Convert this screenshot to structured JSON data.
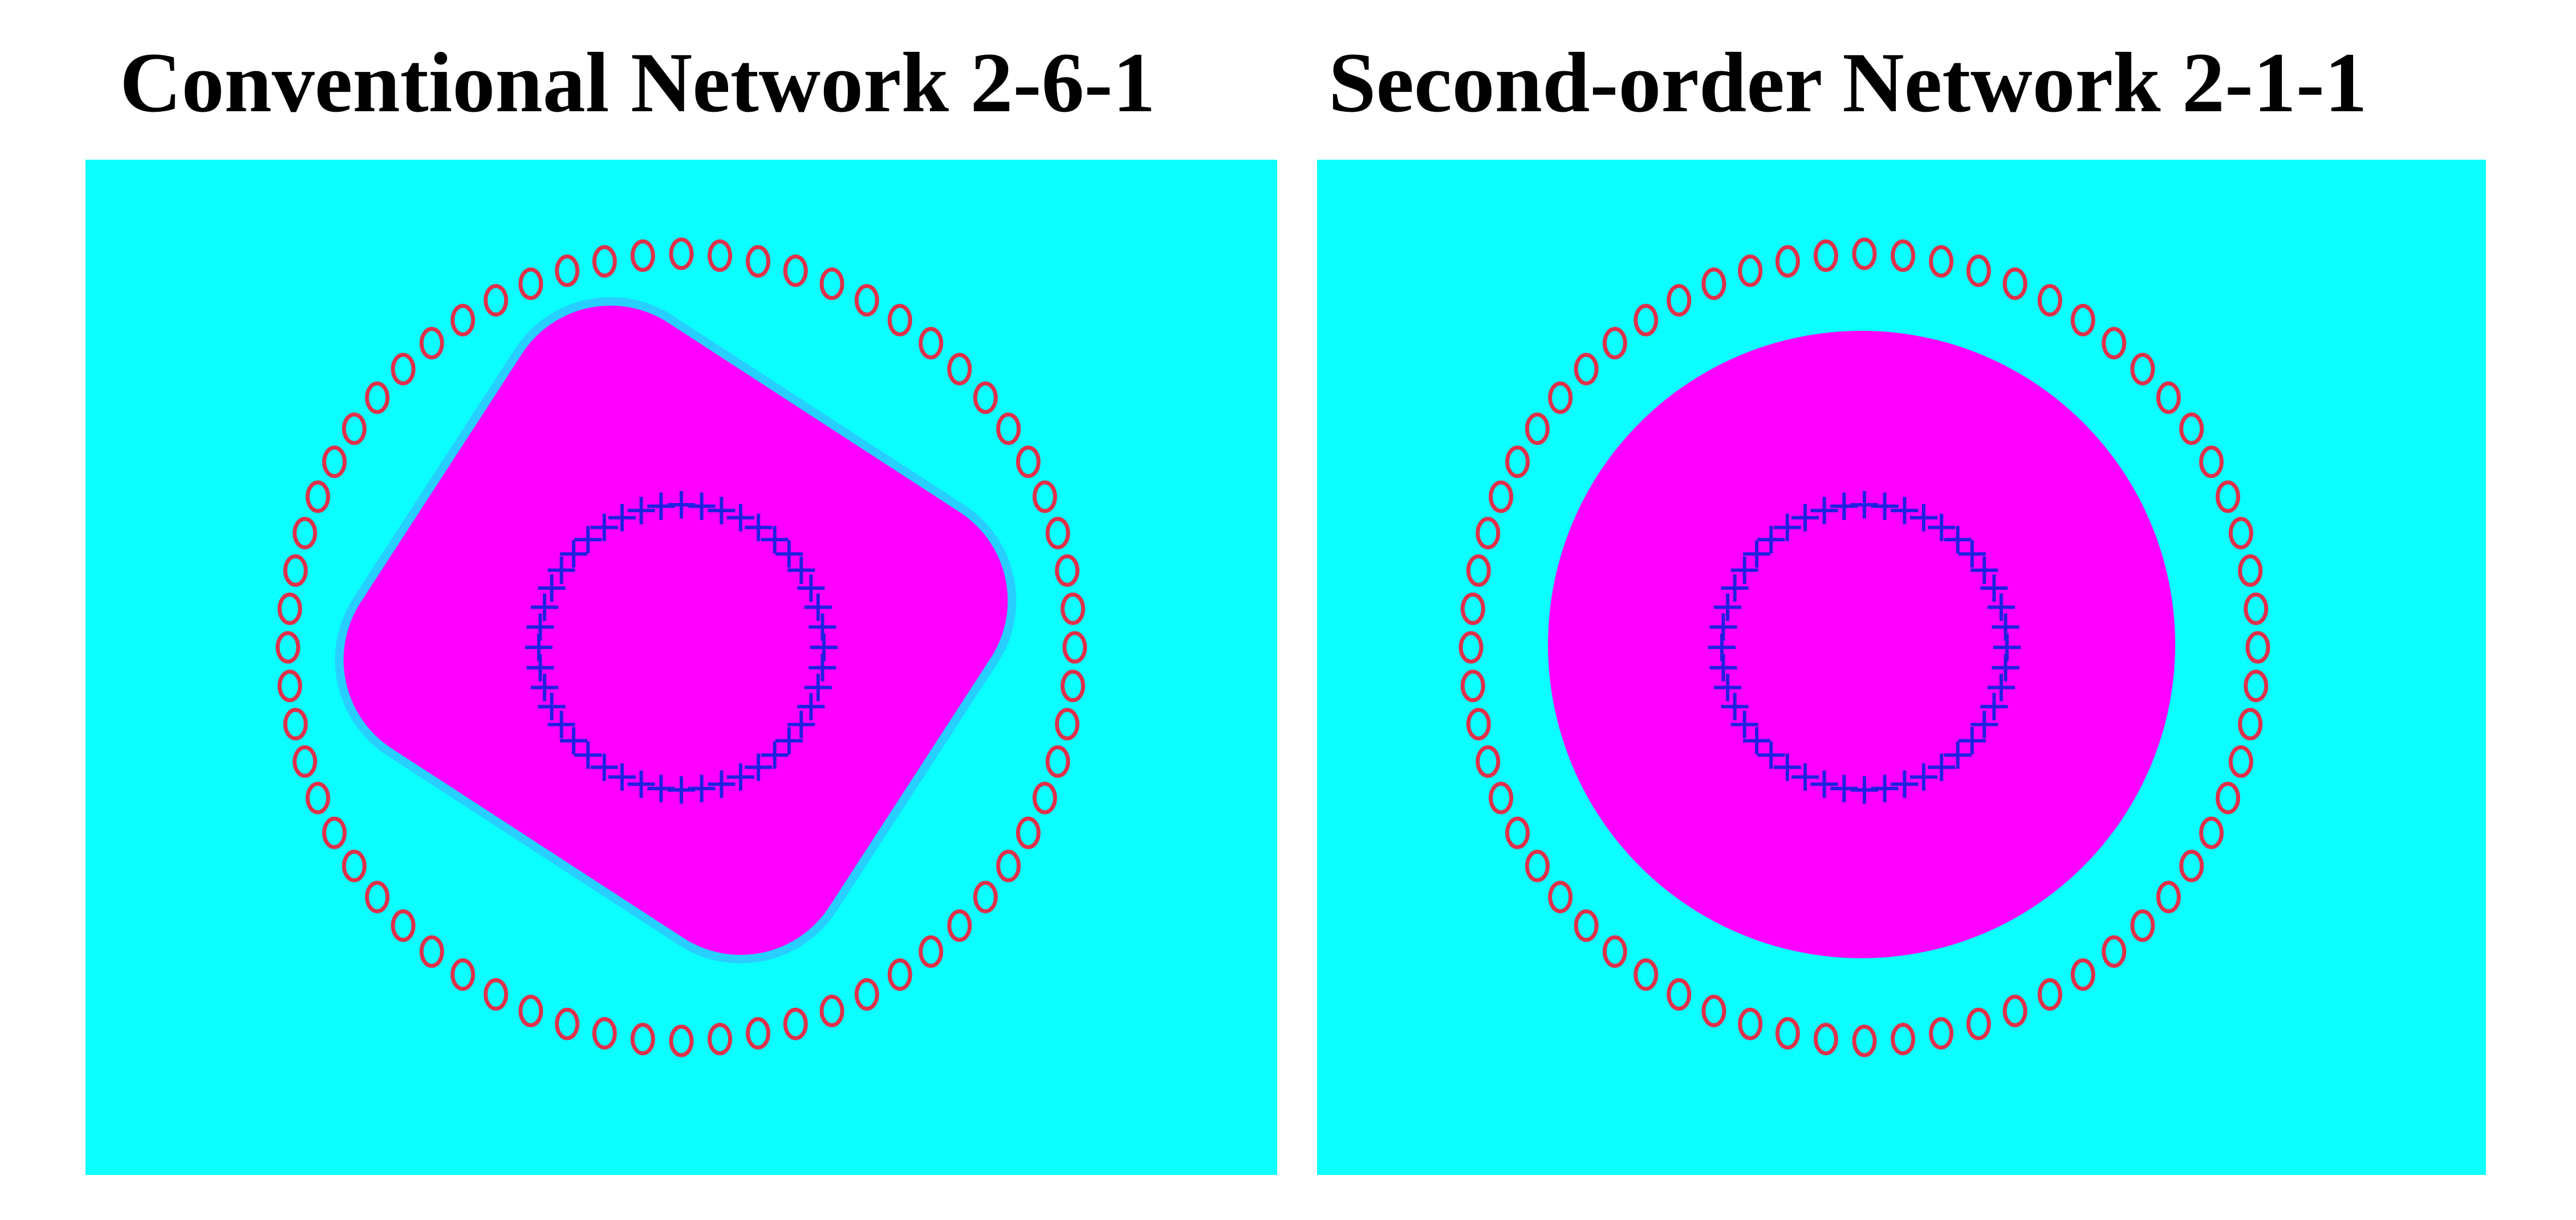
{
  "panels": [
    {
      "id": "left",
      "title": "Conventional Network 2-6-1"
    },
    {
      "id": "right",
      "title": "Second-order Network 2-1-1"
    }
  ],
  "colors": {
    "background": "#0bffff",
    "decision_region": "#ff00ff",
    "region_halo": "#40a8ff",
    "outer_class_marker": "#e0304a",
    "inner_class_marker": "#2020e0"
  },
  "markers": {
    "outer_class_symbol": "o",
    "inner_class_symbol": "+",
    "outer_count": 64,
    "inner_count": 44
  }
}
